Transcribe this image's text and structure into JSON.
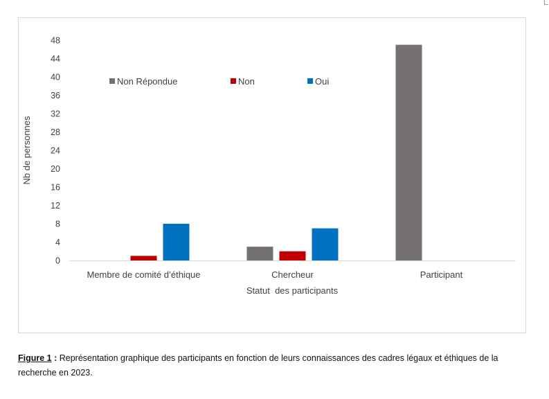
{
  "chart_data": {
    "type": "bar",
    "title": "",
    "xlabel": "Statut  des participants",
    "ylabel": "Nb de personnes",
    "categories": [
      "Membre de comité d’éthique",
      "Chercheur",
      "Participant"
    ],
    "series": [
      {
        "name": "Non Répondue",
        "color": "#767171",
        "values": [
          0,
          3,
          47
        ]
      },
      {
        "name": "Non",
        "color": "#c00000",
        "values": [
          1,
          2,
          0
        ]
      },
      {
        "name": "Oui",
        "color": "#0070c0",
        "values": [
          8,
          7,
          0
        ]
      }
    ],
    "ylim": [
      0,
      48
    ],
    "yticks": [
      0,
      4,
      8,
      12,
      16,
      20,
      24,
      28,
      32,
      36,
      40,
      44,
      48
    ],
    "grid": false,
    "legend_position": "top-left"
  },
  "caption": {
    "label": "Figure 1",
    "separator": " :",
    "text": " Représentation graphique des participants en fonction de leurs connaissances des cadres légaux et éthiques de la recherche en 2023."
  }
}
